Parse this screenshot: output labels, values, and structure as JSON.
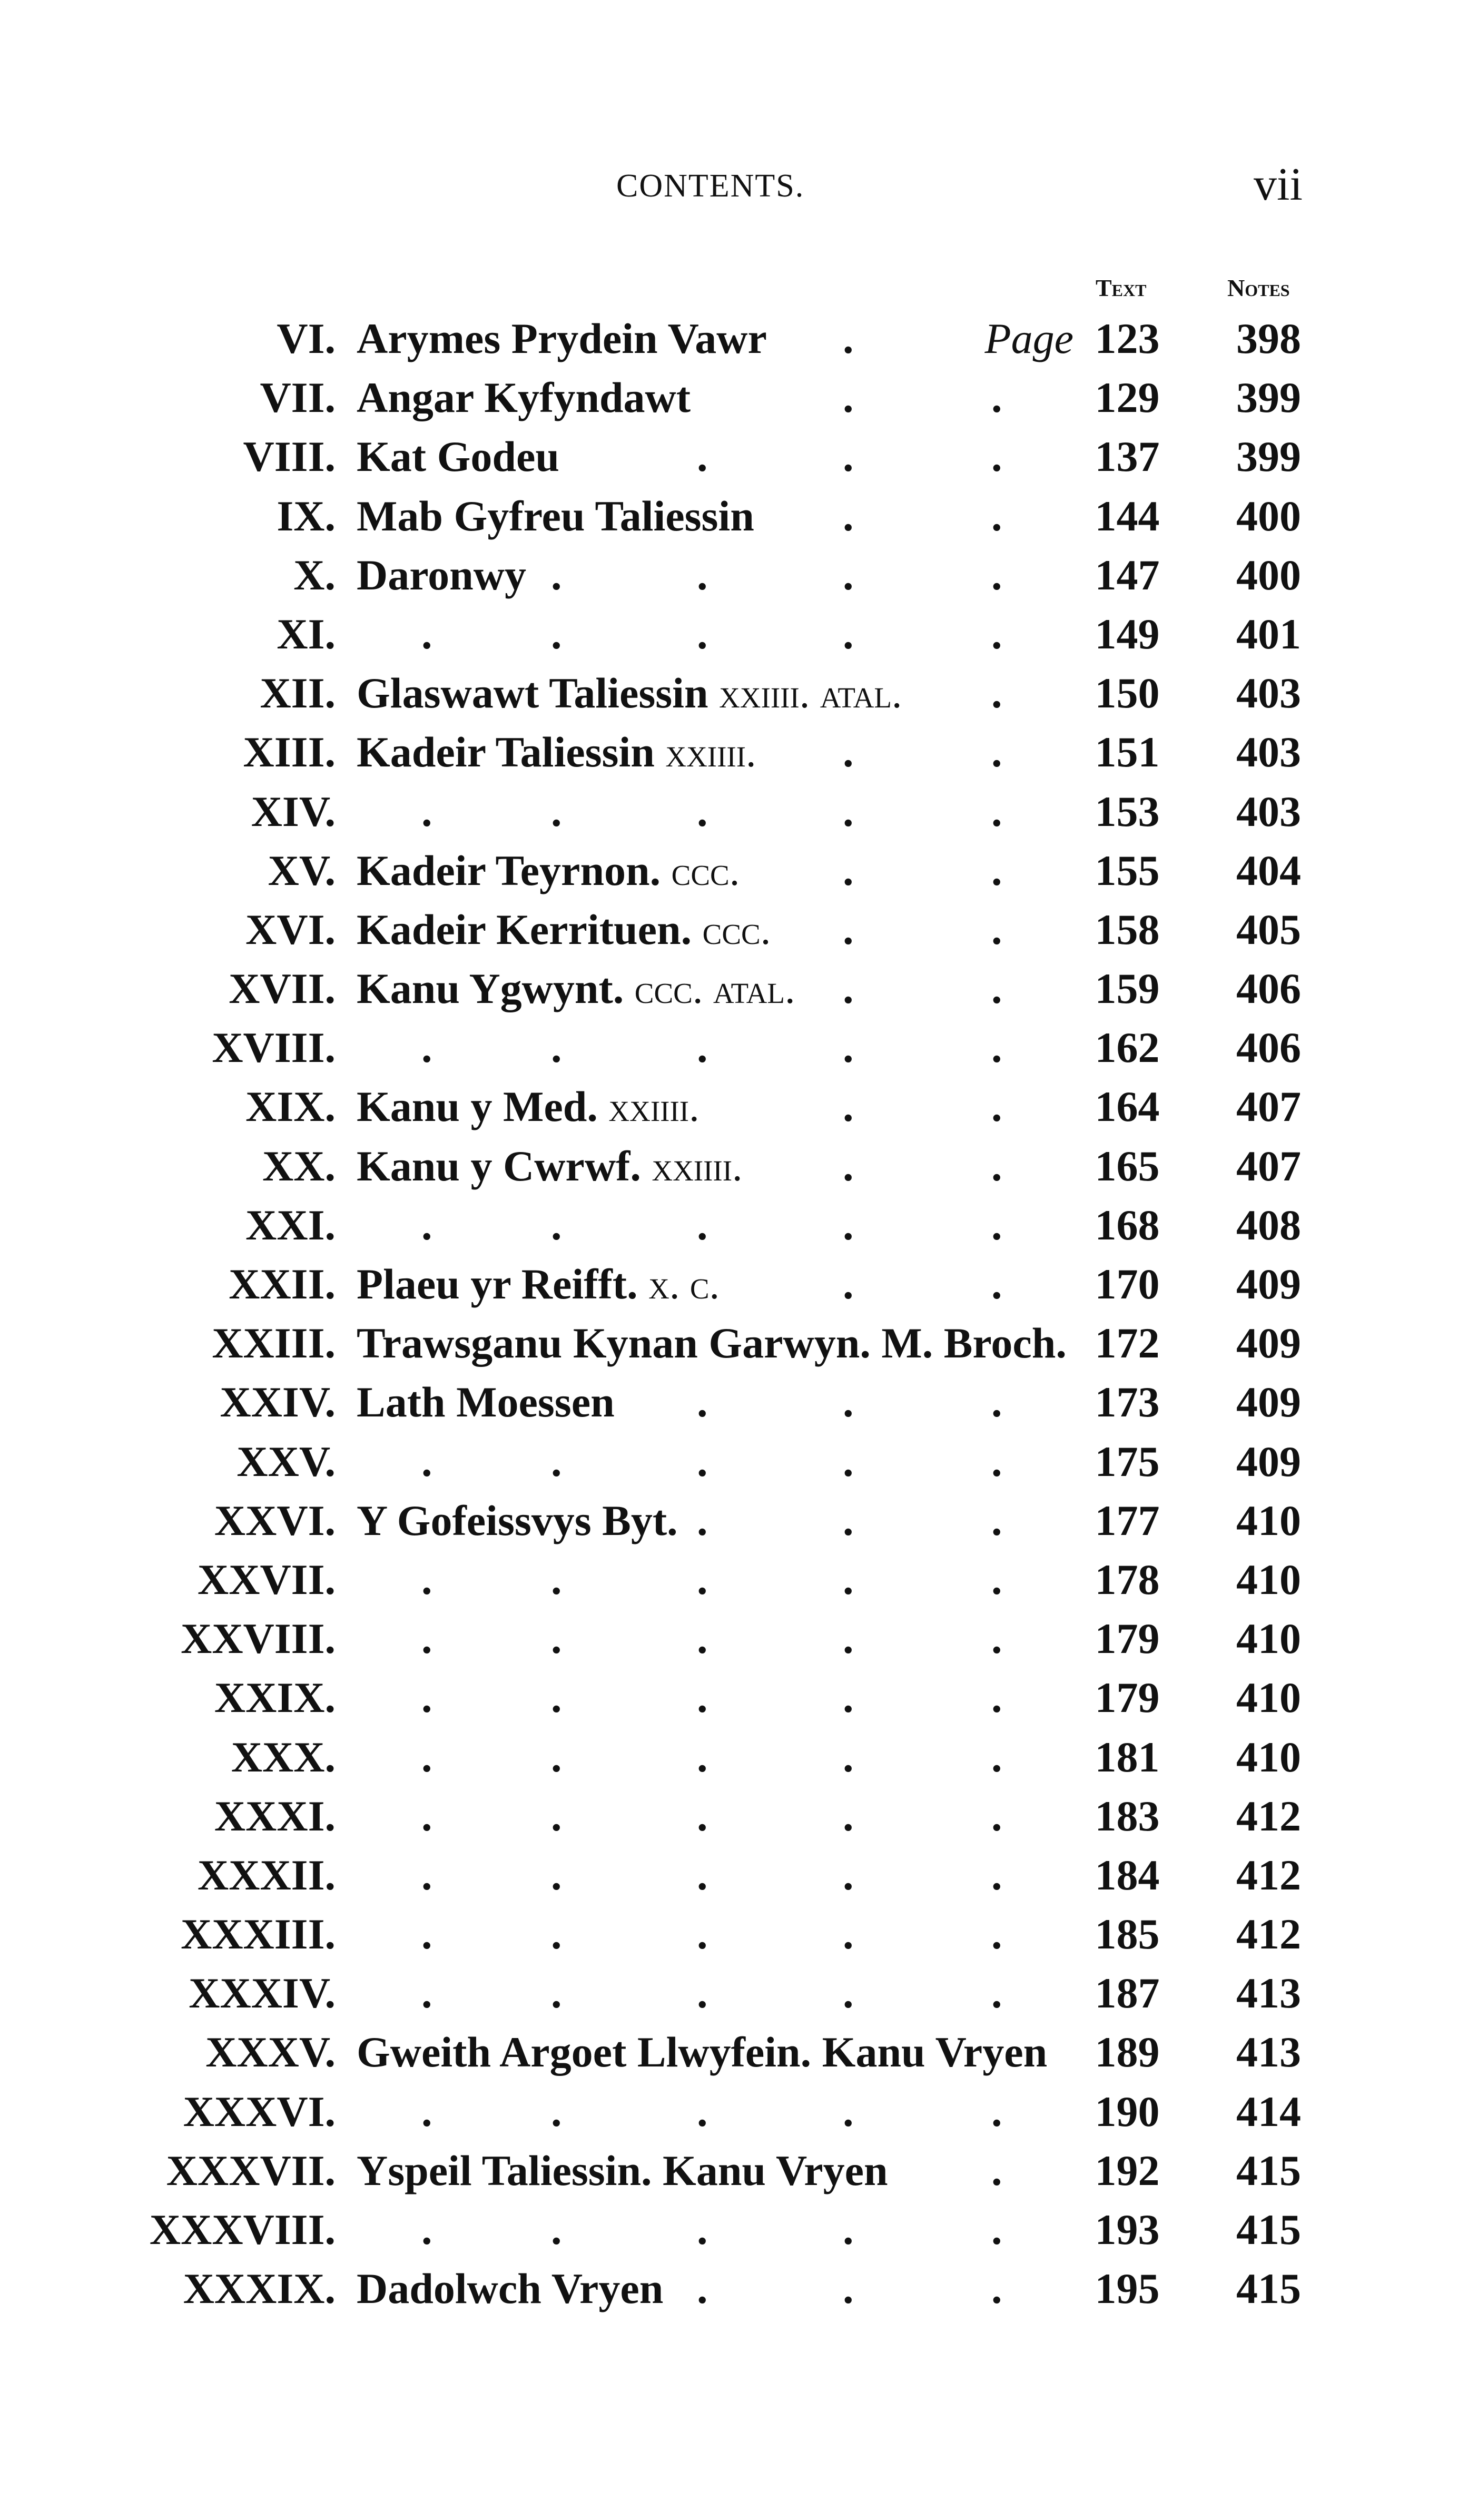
{
  "header": {
    "running_title": "CONTENTS.",
    "page_number": "vii"
  },
  "columns": {
    "text": "Text",
    "notes": "Notes",
    "page_label": "Page"
  },
  "entries": [
    {
      "num": "VI.",
      "title": "Arymes Prydein Vawr",
      "suffix": "",
      "text": "123",
      "notes": "398"
    },
    {
      "num": "VII.",
      "title": "Angar Kyfyndawt",
      "suffix": "",
      "text": "129",
      "notes": "399"
    },
    {
      "num": "VIII.",
      "title": "Kat Godeu",
      "suffix": "",
      "text": "137",
      "notes": "399"
    },
    {
      "num": "IX.",
      "title": "Mab Gyfreu Taliessin",
      "suffix": "",
      "text": "144",
      "notes": "400"
    },
    {
      "num": "X.",
      "title": "Daronwy",
      "suffix": "",
      "text": "147",
      "notes": "400"
    },
    {
      "num": "XI.",
      "title": "",
      "suffix": "",
      "text": "149",
      "notes": "401"
    },
    {
      "num": "XII.",
      "title": "Glaswawt Taliessin",
      "suffix": "xxiiii. atal.",
      "text": "150",
      "notes": "403"
    },
    {
      "num": "XIII.",
      "title": "Kadeir Taliessin",
      "suffix": "xxiiii.",
      "text": "151",
      "notes": "403"
    },
    {
      "num": "XIV.",
      "title": "",
      "suffix": "",
      "text": "153",
      "notes": "403"
    },
    {
      "num": "XV.",
      "title": "Kadeir Teyrnon.",
      "suffix": "ccc.",
      "text": "155",
      "notes": "404"
    },
    {
      "num": "XVI.",
      "title": "Kadeir Kerrituen.",
      "suffix": "ccc.",
      "text": "158",
      "notes": "405"
    },
    {
      "num": "XVII.",
      "title": "Kanu Ygwynt.",
      "suffix": "ccc. atal.",
      "text": "159",
      "notes": "406"
    },
    {
      "num": "XVIII.",
      "title": "",
      "suffix": "",
      "text": "162",
      "notes": "406"
    },
    {
      "num": "XIX.",
      "title": "Kanu y Med.",
      "suffix": "xxiiii.",
      "text": "164",
      "notes": "407"
    },
    {
      "num": "XX.",
      "title": "Kanu y Cwrwf.",
      "suffix": "xxiiii.",
      "text": "165",
      "notes": "407"
    },
    {
      "num": "XXI.",
      "title": "",
      "suffix": "",
      "text": "168",
      "notes": "408"
    },
    {
      "num": "XXII.",
      "title": "Plaeu yr Reifft.",
      "suffix": "x. c.",
      "text": "170",
      "notes": "409"
    },
    {
      "num": "XXIII.",
      "title": "Trawsganu Kynan Garwyn. M. Broch.",
      "suffix": "",
      "text": "172",
      "notes": "409"
    },
    {
      "num": "XXIV.",
      "title": "Lath Moessen",
      "suffix": "",
      "text": "173",
      "notes": "409"
    },
    {
      "num": "XXV.",
      "title": "",
      "suffix": "",
      "text": "175",
      "notes": "409"
    },
    {
      "num": "XXVI.",
      "title": "Y Gofeissvys Byt.",
      "suffix": "",
      "text": "177",
      "notes": "410"
    },
    {
      "num": "XXVII.",
      "title": "",
      "suffix": "",
      "text": "178",
      "notes": "410"
    },
    {
      "num": "XXVIII.",
      "title": "",
      "suffix": "",
      "text": "179",
      "notes": "410"
    },
    {
      "num": "XXIX.",
      "title": "",
      "suffix": "",
      "text": "179",
      "notes": "410"
    },
    {
      "num": "XXX.",
      "title": "",
      "suffix": "",
      "text": "181",
      "notes": "410"
    },
    {
      "num": "XXXI.",
      "title": "",
      "suffix": "",
      "text": "183",
      "notes": "412"
    },
    {
      "num": "XXXII.",
      "title": "",
      "suffix": "",
      "text": "184",
      "notes": "412"
    },
    {
      "num": "XXXIII.",
      "title": "",
      "suffix": "",
      "text": "185",
      "notes": "412"
    },
    {
      "num": "XXXIV.",
      "title": "",
      "suffix": "",
      "text": "187",
      "notes": "413"
    },
    {
      "num": "XXXV.",
      "title": "Gweith Argoet Llwyfein. Kanu Vryen",
      "suffix": "",
      "text": "189",
      "notes": "413"
    },
    {
      "num": "XXXVI.",
      "title": "",
      "suffix": "",
      "text": "190",
      "notes": "414"
    },
    {
      "num": "XXXVII.",
      "title": "Yspeil Taliessin. Kanu Vryen",
      "suffix": "",
      "text": "192",
      "notes": "415"
    },
    {
      "num": "XXXVIII.",
      "title": "",
      "suffix": "",
      "text": "193",
      "notes": "415"
    },
    {
      "num": "XXXIX.",
      "title": "Dadolwch Vryen",
      "suffix": "",
      "text": "195",
      "notes": "415"
    }
  ]
}
